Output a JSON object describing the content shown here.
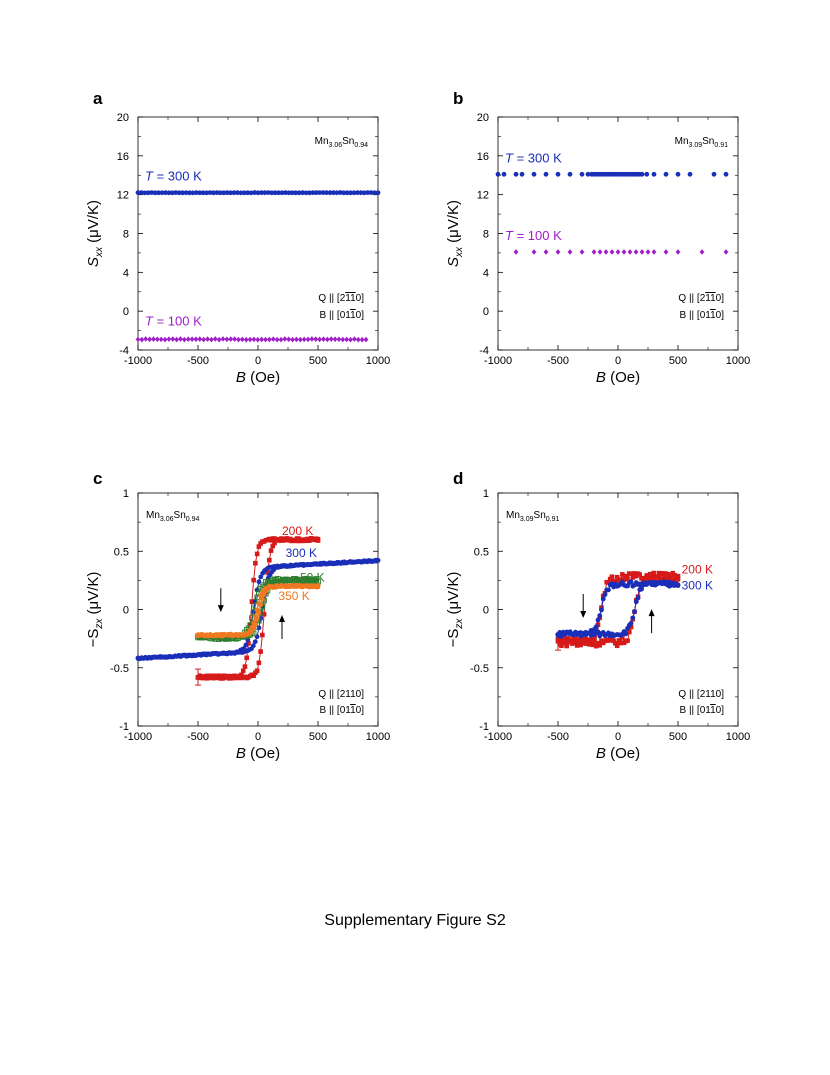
{
  "figure_caption": "Supplementary Figure S2",
  "colors": {
    "red": "#d61a1a",
    "blue": "#1a2fb8",
    "purple": "#a020c8",
    "green": "#2e7d2e",
    "orange": "#f07820",
    "black": "#000000"
  },
  "chart_data": [
    {
      "panel": "a",
      "type": "scatter",
      "sample": {
        "base": "Mn",
        "sub1": "3.06",
        "mid": "Sn",
        "sub2": "0.94"
      },
      "xlabel": "B (Oe)",
      "ylabel": "S_xx (μV/K)",
      "xlim": [
        -1000,
        1000
      ],
      "ylim": [
        -4,
        20
      ],
      "xticks": [
        "-1000",
        "-500",
        "0",
        "500",
        "1000"
      ],
      "yticks": [
        "-4",
        "0",
        "4",
        "8",
        "12",
        "16",
        "20"
      ],
      "conditions": [
        "Q || [2-1-10]",
        "B || [01-10]"
      ],
      "series": [
        {
          "name": "T = 300 K",
          "color": "blue",
          "marker": "circle",
          "x_range": [
            -1000,
            1000
          ],
          "n": 71,
          "y": 12.2,
          "noise": 0.03
        },
        {
          "name": "T = 100 K",
          "color": "purple",
          "marker": "diamond",
          "x_range": [
            -1000,
            900
          ],
          "n": 60,
          "y": -2.9,
          "noise": 0.08
        }
      ]
    },
    {
      "panel": "b",
      "type": "scatter",
      "sample": {
        "base": "Mn",
        "sub1": "3.09",
        "mid": "Sn",
        "sub2": "0.91"
      },
      "xlabel": "B (Oe)",
      "ylabel": "S_xx (μV/K)",
      "xlim": [
        -1000,
        1000
      ],
      "ylim": [
        -4,
        20
      ],
      "xticks": [
        "-1000",
        "-500",
        "0",
        "500",
        "1000"
      ],
      "yticks": [
        "-4",
        "0",
        "4",
        "8",
        "12",
        "16",
        "20"
      ],
      "conditions": [
        "Q || [2-1-10]",
        "B || [01-10]"
      ],
      "series": [
        {
          "name": "T = 300 K",
          "color": "blue",
          "marker": "circle",
          "y": 14.1,
          "x": [
            -1000,
            -950,
            -850,
            -800,
            -700,
            -600,
            -500,
            -400,
            -300,
            -250,
            -220,
            -200,
            -180,
            -160,
            -140,
            -120,
            -100,
            -80,
            -60,
            -40,
            -20,
            0,
            20,
            40,
            60,
            80,
            100,
            120,
            140,
            160,
            180,
            200,
            240,
            300,
            400,
            500,
            600,
            800,
            900
          ]
        },
        {
          "name": "T = 100 K",
          "color": "purple",
          "marker": "diamond",
          "y": 6.1,
          "x": [
            -850,
            -700,
            -600,
            -500,
            -400,
            -300,
            -200,
            -150,
            -100,
            -50,
            0,
            50,
            100,
            150,
            200,
            250,
            300,
            400,
            500,
            700,
            900
          ]
        }
      ]
    },
    {
      "panel": "c",
      "type": "line",
      "sample": {
        "base": "Mn",
        "sub1": "3.06",
        "mid": "Sn",
        "sub2": "0.94"
      },
      "xlabel": "B (Oe)",
      "ylabel": "−S_zx (μV/K)",
      "xlim": [
        -1000,
        1000
      ],
      "ylim": [
        -1,
        1
      ],
      "xticks": [
        "-1000",
        "-500",
        "0",
        "500",
        "1000"
      ],
      "yticks": [
        "-1",
        "-0.5",
        "0",
        "0.5",
        "1"
      ],
      "conditions": [
        "Q || [2110]",
        "B || [01-10]"
      ],
      "series": [
        {
          "name": "200 K",
          "color": "red",
          "marker": "square",
          "x_range": [
            -500,
            500
          ],
          "low": -0.58,
          "high": 0.6,
          "hc": 55,
          "w": 22,
          "noise": 0.012
        },
        {
          "name": "300 K",
          "color": "blue",
          "marker": "circle",
          "x_range": [
            -1000,
            1000
          ],
          "low": -0.36,
          "high": 0.36,
          "hc": 35,
          "w": 28,
          "slope": 6e-05,
          "noise": 0.006
        },
        {
          "name": "50 K",
          "color": "green",
          "marker": "open-square",
          "x_range": [
            -500,
            500
          ],
          "low": -0.24,
          "high": 0.25,
          "hc": 30,
          "w": 30,
          "noise": 0.015
        },
        {
          "name": "350 K",
          "color": "orange",
          "marker": "circle",
          "x_range": [
            -500,
            500
          ],
          "low": -0.22,
          "high": 0.2,
          "hc": 10,
          "w": 25,
          "noise": 0.008
        }
      ],
      "arrows": [
        {
          "direction": "down",
          "x": -310,
          "y": 0.08
        },
        {
          "direction": "up",
          "x": 200,
          "y": -0.15
        }
      ]
    },
    {
      "panel": "d",
      "type": "line",
      "sample": {
        "base": "Mn",
        "sub1": "3.09",
        "mid": "Sn",
        "sub2": "0.91"
      },
      "xlabel": "B (Oe)",
      "ylabel": "−S_zx (μV/K)",
      "xlim": [
        -1000,
        1000
      ],
      "ylim": [
        -1,
        1
      ],
      "xticks": [
        "-1000",
        "-500",
        "0",
        "500",
        "1000"
      ],
      "yticks": [
        "-1",
        "-0.5",
        "0",
        "0.5",
        "1"
      ],
      "conditions": [
        "Q || [2110]",
        "B || [01-10]"
      ],
      "series": [
        {
          "name": "200 K",
          "color": "red",
          "marker": "square",
          "x_range": [
            -500,
            500
          ],
          "low": -0.28,
          "high": 0.28,
          "hc": 140,
          "w": 25,
          "noise": 0.035
        },
        {
          "name": "300 K",
          "color": "blue",
          "marker": "circle",
          "x_range": [
            -500,
            500
          ],
          "low": -0.21,
          "high": 0.22,
          "hc": 140,
          "w": 25,
          "noise": 0.02
        }
      ],
      "arrows": [
        {
          "direction": "down",
          "x": -290,
          "y": 0.03
        },
        {
          "direction": "up",
          "x": 280,
          "y": -0.1
        }
      ]
    }
  ]
}
